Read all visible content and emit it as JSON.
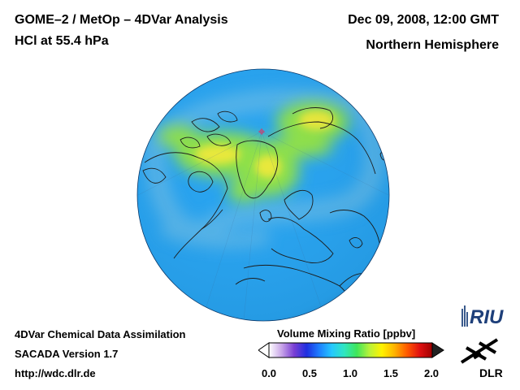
{
  "header": {
    "title_line1": "GOME–2 / MetOp – 4DVar Analysis",
    "title_line2": "HCl at 55.4 hPa",
    "date": "Dec 09, 2008, 12:00 GMT",
    "region": "Northern Hemisphere"
  },
  "footer": {
    "line1": "4DVar Chemical Data Assimilation",
    "line2": "SACADA Version 1.7",
    "line3": "http://wdc.dlr.de"
  },
  "colorbar": {
    "label": "Volume Mixing Ratio [ppbv]",
    "ticks": [
      "0.0",
      "0.5",
      "1.0",
      "1.5",
      "2.0"
    ],
    "range": [
      0.0,
      2.0
    ],
    "colors": [
      "#ffffff",
      "#c9a6e8",
      "#7a3fd4",
      "#1f2fe0",
      "#1e7fff",
      "#25c8ff",
      "#2fe6c0",
      "#3fe65a",
      "#b8f23a",
      "#fff200",
      "#ffb300",
      "#ff5a00",
      "#e01010",
      "#a00000"
    ]
  },
  "map": {
    "projection": "orthographic, north-polar view",
    "field_colors": {
      "background": "#27a3f0",
      "low_band": "#5cb6e8",
      "high": "#8ee04a",
      "peak": "#e8e83a"
    }
  },
  "logos": {
    "riu": "RIU",
    "dlr": "DLR"
  }
}
